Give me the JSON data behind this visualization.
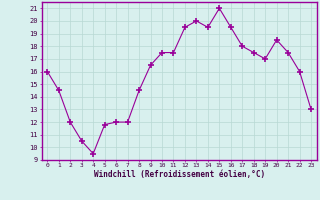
{
  "x": [
    0,
    1,
    2,
    3,
    4,
    5,
    6,
    7,
    8,
    9,
    10,
    11,
    12,
    13,
    14,
    15,
    16,
    17,
    18,
    19,
    20,
    21,
    22,
    23
  ],
  "y": [
    16,
    14.5,
    12,
    10.5,
    9.5,
    11.8,
    12,
    12,
    14.5,
    16.5,
    17.5,
    17.5,
    19.5,
    20,
    19.5,
    21,
    19.5,
    18,
    17.5,
    17,
    18.5,
    17.5,
    16,
    13
  ],
  "line_color": "#990099",
  "marker": "+",
  "marker_size": 4,
  "bg_color": "#d8f0ee",
  "grid_color": "#b8d8d4",
  "xlabel": "Windchill (Refroidissement éolien,°C)",
  "ylabel_ticks": [
    9,
    10,
    11,
    12,
    13,
    14,
    15,
    16,
    17,
    18,
    19,
    20,
    21
  ],
  "xlim": [
    -0.5,
    23.5
  ],
  "ylim": [
    9,
    21.5
  ],
  "border_color": "#990099"
}
